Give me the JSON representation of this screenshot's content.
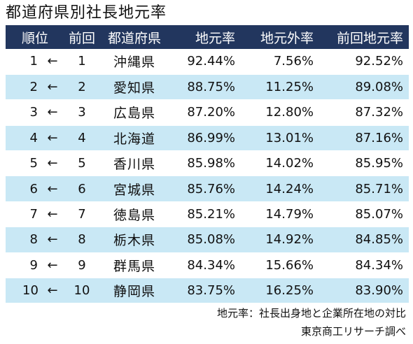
{
  "title": "都道府県別社長地元率",
  "header": {
    "rank": "順位",
    "prev": "前回",
    "pref": "都道府県",
    "local": "地元率",
    "outside": "地元外率",
    "prev_local": "前回地元率"
  },
  "rows": [
    {
      "rank": "1",
      "arrow": "←",
      "prev": "1",
      "pref": "沖縄県",
      "local": "92.44%",
      "outside": "7.56%",
      "prev_local": "92.52%"
    },
    {
      "rank": "2",
      "arrow": "←",
      "prev": "2",
      "pref": "愛知県",
      "local": "88.75%",
      "outside": "11.25%",
      "prev_local": "89.08%"
    },
    {
      "rank": "3",
      "arrow": "←",
      "prev": "3",
      "pref": "広島県",
      "local": "87.20%",
      "outside": "12.80%",
      "prev_local": "87.32%"
    },
    {
      "rank": "4",
      "arrow": "←",
      "prev": "4",
      "pref": "北海道",
      "local": "86.99%",
      "outside": "13.01%",
      "prev_local": "87.16%"
    },
    {
      "rank": "5",
      "arrow": "←",
      "prev": "5",
      "pref": "香川県",
      "local": "85.98%",
      "outside": "14.02%",
      "prev_local": "85.95%"
    },
    {
      "rank": "6",
      "arrow": "←",
      "prev": "6",
      "pref": "宮城県",
      "local": "85.76%",
      "outside": "14.24%",
      "prev_local": "85.71%"
    },
    {
      "rank": "7",
      "arrow": "←",
      "prev": "7",
      "pref": "徳島県",
      "local": "85.21%",
      "outside": "14.79%",
      "prev_local": "85.07%"
    },
    {
      "rank": "8",
      "arrow": "←",
      "prev": "8",
      "pref": "栃木県",
      "local": "85.08%",
      "outside": "14.92%",
      "prev_local": "84.85%"
    },
    {
      "rank": "9",
      "arrow": "←",
      "prev": "9",
      "pref": "群馬県",
      "local": "84.34%",
      "outside": "15.66%",
      "prev_local": "84.34%"
    },
    {
      "rank": "10",
      "arrow": "←",
      "prev": "10",
      "pref": "静岡県",
      "local": "83.75%",
      "outside": "16.25%",
      "prev_local": "83.90%"
    }
  ],
  "colors": {
    "header_bg": "#22365e",
    "header_text": "#ffffff",
    "stripe": "#c9e8f5"
  },
  "footnote": "地元率：社長出身地と企業所在地の対比",
  "source": "東京商工リサーチ調べ"
}
